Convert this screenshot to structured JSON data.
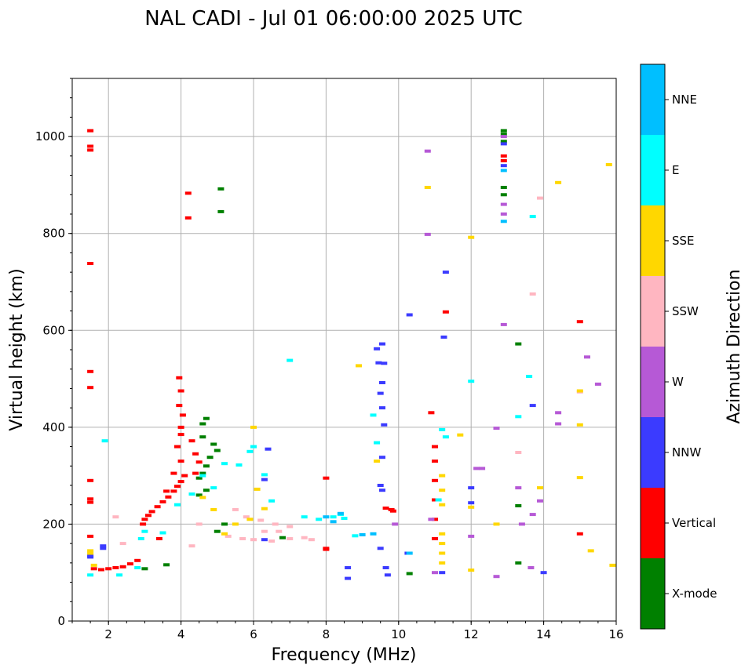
{
  "chart_data": {
    "type": "scatter",
    "title": "NAL CADI - Jul 01 06:00:00 2025 UTC",
    "xlabel": "Frequency (MHz)",
    "ylabel": "Virtual height (km)",
    "xlim": [
      1,
      16
    ],
    "ylim": [
      0,
      1120
    ],
    "xticks": [
      2,
      4,
      6,
      8,
      10,
      12,
      14,
      16
    ],
    "yticks": [
      0,
      200,
      400,
      600,
      800,
      1000
    ],
    "grid": true,
    "colorbar": {
      "label": "Azimuth Direction",
      "categories": [
        {
          "name": "X-mode",
          "color": "#008000"
        },
        {
          "name": "Vertical",
          "color": "#ff0000"
        },
        {
          "name": "NNW",
          "color": "#3b3bff"
        },
        {
          "name": "W",
          "color": "#b659d6"
        },
        {
          "name": "SSW",
          "color": "#ffb6c1"
        },
        {
          "name": "SSE",
          "color": "#ffd700"
        },
        {
          "name": "E",
          "color": "#00ffff"
        },
        {
          "name": "NNE",
          "color": "#00bfff"
        }
      ]
    },
    "series": [
      {
        "name": "Vertical",
        "points": [
          [
            1.5,
            1012
          ],
          [
            1.5,
            980
          ],
          [
            1.5,
            972
          ],
          [
            1.5,
            738
          ],
          [
            1.5,
            515
          ],
          [
            1.5,
            482
          ],
          [
            1.5,
            290
          ],
          [
            1.5,
            252
          ],
          [
            1.5,
            245
          ],
          [
            1.5,
            175
          ],
          [
            1.6,
            108
          ],
          [
            1.8,
            106
          ],
          [
            2.0,
            108
          ],
          [
            2.2,
            110
          ],
          [
            2.4,
            112
          ],
          [
            2.6,
            118
          ],
          [
            2.8,
            125
          ],
          [
            2.95,
            200
          ],
          [
            3.0,
            210
          ],
          [
            3.1,
            218
          ],
          [
            3.2,
            226
          ],
          [
            3.35,
            236
          ],
          [
            3.5,
            246
          ],
          [
            3.65,
            256
          ],
          [
            3.8,
            268
          ],
          [
            3.9,
            278
          ],
          [
            4.0,
            288
          ],
          [
            4.1,
            300
          ],
          [
            3.6,
            268
          ],
          [
            3.8,
            305
          ],
          [
            4.0,
            330
          ],
          [
            3.9,
            360
          ],
          [
            4.0,
            385
          ],
          [
            4.0,
            400
          ],
          [
            4.05,
            425
          ],
          [
            3.95,
            445
          ],
          [
            4.0,
            475
          ],
          [
            3.95,
            502
          ],
          [
            4.2,
            883
          ],
          [
            4.2,
            832
          ],
          [
            4.3,
            372
          ],
          [
            4.4,
            345
          ],
          [
            4.5,
            328
          ],
          [
            4.4,
            305
          ],
          [
            3.4,
            170
          ],
          [
            8.0,
            295
          ],
          [
            8.0,
            150
          ],
          [
            8.0,
            148
          ],
          [
            9.65,
            233
          ],
          [
            9.8,
            230
          ],
          [
            9.85,
            227
          ],
          [
            11.0,
            170
          ],
          [
            11.0,
            210
          ],
          [
            11.0,
            250
          ],
          [
            11.0,
            290
          ],
          [
            11.0,
            330
          ],
          [
            11.0,
            360
          ],
          [
            10.9,
            430
          ],
          [
            11.3,
            638
          ],
          [
            12.9,
            960
          ],
          [
            12.9,
            950
          ],
          [
            15.0,
            618
          ],
          [
            15.0,
            180
          ]
        ]
      },
      {
        "name": "X-mode",
        "points": [
          [
            3.0,
            108
          ],
          [
            3.6,
            116
          ],
          [
            4.5,
            295
          ],
          [
            4.6,
            305
          ],
          [
            4.7,
            320
          ],
          [
            4.8,
            338
          ],
          [
            5.0,
            352
          ],
          [
            4.9,
            365
          ],
          [
            4.6,
            380
          ],
          [
            4.6,
            407
          ],
          [
            4.7,
            418
          ],
          [
            4.5,
            260
          ],
          [
            4.7,
            270
          ],
          [
            5.1,
            845
          ],
          [
            5.1,
            892
          ],
          [
            5.2,
            200
          ],
          [
            5.0,
            185
          ],
          [
            6.8,
            172
          ],
          [
            10.3,
            98
          ],
          [
            13.3,
            238
          ],
          [
            13.3,
            572
          ],
          [
            12.9,
            895
          ],
          [
            12.9,
            880
          ],
          [
            12.9,
            990
          ],
          [
            12.9,
            1005
          ],
          [
            12.9,
            1012
          ],
          [
            13.3,
            120
          ]
        ]
      },
      {
        "name": "NNW",
        "points": [
          [
            1.5,
            132
          ],
          [
            1.5,
            135
          ],
          [
            1.85,
            150
          ],
          [
            1.85,
            155
          ],
          [
            6.4,
            355
          ],
          [
            6.3,
            292
          ],
          [
            6.3,
            168
          ],
          [
            8.6,
            110
          ],
          [
            8.6,
            88
          ],
          [
            9.4,
            562
          ],
          [
            9.55,
            572
          ],
          [
            9.45,
            533
          ],
          [
            9.6,
            532
          ],
          [
            9.55,
            492
          ],
          [
            9.5,
            470
          ],
          [
            9.55,
            440
          ],
          [
            9.6,
            405
          ],
          [
            9.55,
            338
          ],
          [
            9.5,
            280
          ],
          [
            9.55,
            270
          ],
          [
            9.5,
            150
          ],
          [
            9.65,
            110
          ],
          [
            9.7,
            95
          ],
          [
            10.3,
            632
          ],
          [
            10.25,
            140
          ],
          [
            11.3,
            720
          ],
          [
            11.25,
            586
          ],
          [
            11.2,
            100
          ],
          [
            12.0,
            244
          ],
          [
            12.0,
            275
          ],
          [
            12.9,
            985
          ],
          [
            12.9,
            940
          ],
          [
            13.7,
            445
          ],
          [
            14.0,
            100
          ]
        ]
      },
      {
        "name": "W",
        "points": [
          [
            9.9,
            200
          ],
          [
            10.8,
            970
          ],
          [
            10.8,
            798
          ],
          [
            10.9,
            210
          ],
          [
            11.0,
            100
          ],
          [
            12.0,
            175
          ],
          [
            12.15,
            315
          ],
          [
            12.7,
            398
          ],
          [
            12.7,
            92
          ],
          [
            12.9,
            1000
          ],
          [
            12.9,
            860
          ],
          [
            12.9,
            840
          ],
          [
            12.9,
            612
          ],
          [
            13.3,
            275
          ],
          [
            13.4,
            200
          ],
          [
            13.65,
            110
          ],
          [
            13.7,
            220
          ],
          [
            13.9,
            248
          ],
          [
            14.4,
            430
          ],
          [
            14.4,
            407
          ],
          [
            15.2,
            545
          ],
          [
            15.5,
            489
          ],
          [
            12.3,
            315
          ]
        ]
      },
      {
        "name": "SSW",
        "points": [
          [
            2.2,
            215
          ],
          [
            2.4,
            160
          ],
          [
            4.5,
            200
          ],
          [
            4.3,
            155
          ],
          [
            5.5,
            230
          ],
          [
            5.8,
            215
          ],
          [
            6.2,
            208
          ],
          [
            6.6,
            200
          ],
          [
            7.0,
            195
          ],
          [
            5.3,
            175
          ],
          [
            5.7,
            170
          ],
          [
            6.0,
            168
          ],
          [
            6.5,
            165
          ],
          [
            7.0,
            170
          ],
          [
            7.4,
            172
          ],
          [
            7.6,
            168
          ],
          [
            6.3,
            185
          ],
          [
            6.7,
            185
          ],
          [
            13.3,
            348
          ],
          [
            13.7,
            675
          ],
          [
            13.9,
            873
          ],
          [
            15.0,
            473
          ]
        ]
      },
      {
        "name": "SSE",
        "points": [
          [
            1.5,
            145
          ],
          [
            1.5,
            140
          ],
          [
            1.6,
            115
          ],
          [
            4.6,
            255
          ],
          [
            4.9,
            230
          ],
          [
            5.5,
            200
          ],
          [
            5.9,
            210
          ],
          [
            6.3,
            232
          ],
          [
            5.2,
            180
          ],
          [
            6.0,
            400
          ],
          [
            6.1,
            272
          ],
          [
            8.9,
            527
          ],
          [
            9.4,
            330
          ],
          [
            10.8,
            895
          ],
          [
            11.2,
            120
          ],
          [
            11.2,
            140
          ],
          [
            11.2,
            160
          ],
          [
            11.2,
            180
          ],
          [
            11.2,
            240
          ],
          [
            11.2,
            270
          ],
          [
            11.2,
            300
          ],
          [
            11.7,
            384
          ],
          [
            12.0,
            792
          ],
          [
            12.0,
            235
          ],
          [
            12.0,
            105
          ],
          [
            12.7,
            200
          ],
          [
            13.9,
            275
          ],
          [
            14.4,
            905
          ],
          [
            15.0,
            475
          ],
          [
            15.0,
            405
          ],
          [
            15.0,
            296
          ],
          [
            15.3,
            145
          ],
          [
            15.8,
            942
          ],
          [
            15.9,
            115
          ]
        ]
      },
      {
        "name": "E",
        "points": [
          [
            1.5,
            95
          ],
          [
            1.9,
            372
          ],
          [
            2.3,
            95
          ],
          [
            2.8,
            110
          ],
          [
            2.9,
            170
          ],
          [
            3.0,
            185
          ],
          [
            3.5,
            182
          ],
          [
            3.9,
            240
          ],
          [
            4.3,
            262
          ],
          [
            4.6,
            300
          ],
          [
            4.9,
            275
          ],
          [
            5.2,
            325
          ],
          [
            5.6,
            322
          ],
          [
            5.9,
            350
          ],
          [
            6.0,
            360
          ],
          [
            6.3,
            302
          ],
          [
            6.5,
            248
          ],
          [
            7.0,
            538
          ],
          [
            7.4,
            215
          ],
          [
            7.8,
            210
          ],
          [
            8.2,
            215
          ],
          [
            8.5,
            212
          ],
          [
            8.8,
            176
          ],
          [
            8.4,
            220
          ],
          [
            9.3,
            425
          ],
          [
            9.4,
            368
          ],
          [
            11.2,
            395
          ],
          [
            11.3,
            380
          ],
          [
            11.1,
            250
          ],
          [
            12.0,
            495
          ],
          [
            13.3,
            422
          ],
          [
            13.6,
            505
          ],
          [
            13.7,
            835
          ]
        ]
      },
      {
        "name": "NNE",
        "points": [
          [
            8.0,
            215
          ],
          [
            8.2,
            205
          ],
          [
            8.4,
            222
          ],
          [
            9.0,
            178
          ],
          [
            9.3,
            180
          ],
          [
            10.3,
            140
          ],
          [
            12.9,
            825
          ],
          [
            12.9,
            930
          ]
        ]
      }
    ]
  }
}
